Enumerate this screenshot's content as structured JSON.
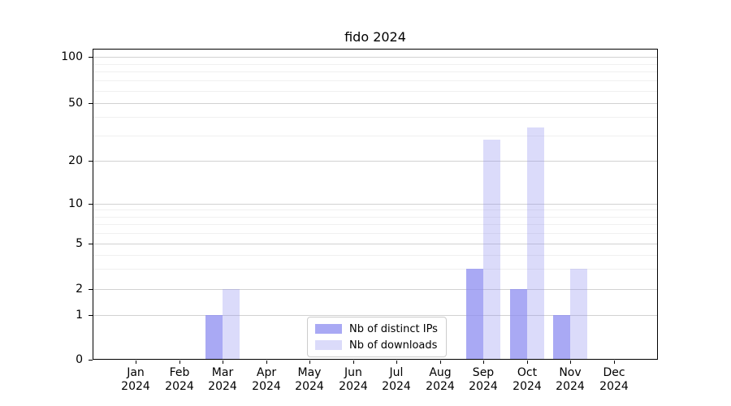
{
  "title": "fido 2024",
  "chart_data": {
    "type": "bar",
    "title": "fido 2024",
    "yscale": "symlog",
    "grid": true,
    "legend_position": "lower center",
    "xlabel": "",
    "ylabel": "",
    "ylim": [
      0,
      100
    ],
    "yticks": [
      0,
      1,
      2,
      5,
      10,
      20,
      50,
      100
    ],
    "yticks_minor": [
      3,
      4,
      6,
      7,
      8,
      9,
      30,
      40,
      60,
      70,
      80,
      90
    ],
    "categories": [
      "Jan 2024",
      "Feb 2024",
      "Mar 2024",
      "Apr 2024",
      "May 2024",
      "Jun 2024",
      "Jul 2024",
      "Aug 2024",
      "Sep 2024",
      "Oct 2024",
      "Nov 2024",
      "Dec 2024"
    ],
    "series": [
      {
        "name": "Nb of distinct IPs",
        "color": "#8c8cf0",
        "alpha": 0.75,
        "swatch_color": "#a9a9f4",
        "values": [
          0,
          0,
          1,
          0,
          0,
          0,
          0,
          0,
          3,
          2,
          1,
          0
        ]
      },
      {
        "name": "Nb of downloads",
        "color": "#8c8cf0",
        "alpha": 0.31,
        "swatch_color": "#dbdbfa",
        "values": [
          0,
          0,
          2,
          0,
          0,
          0,
          0,
          0,
          28,
          34,
          3,
          0
        ]
      }
    ]
  },
  "colors": {
    "grid_major": "#d2d2d2",
    "grid_minor": "#f0f0f0",
    "spine": "#000000",
    "background": "#ffffff"
  }
}
